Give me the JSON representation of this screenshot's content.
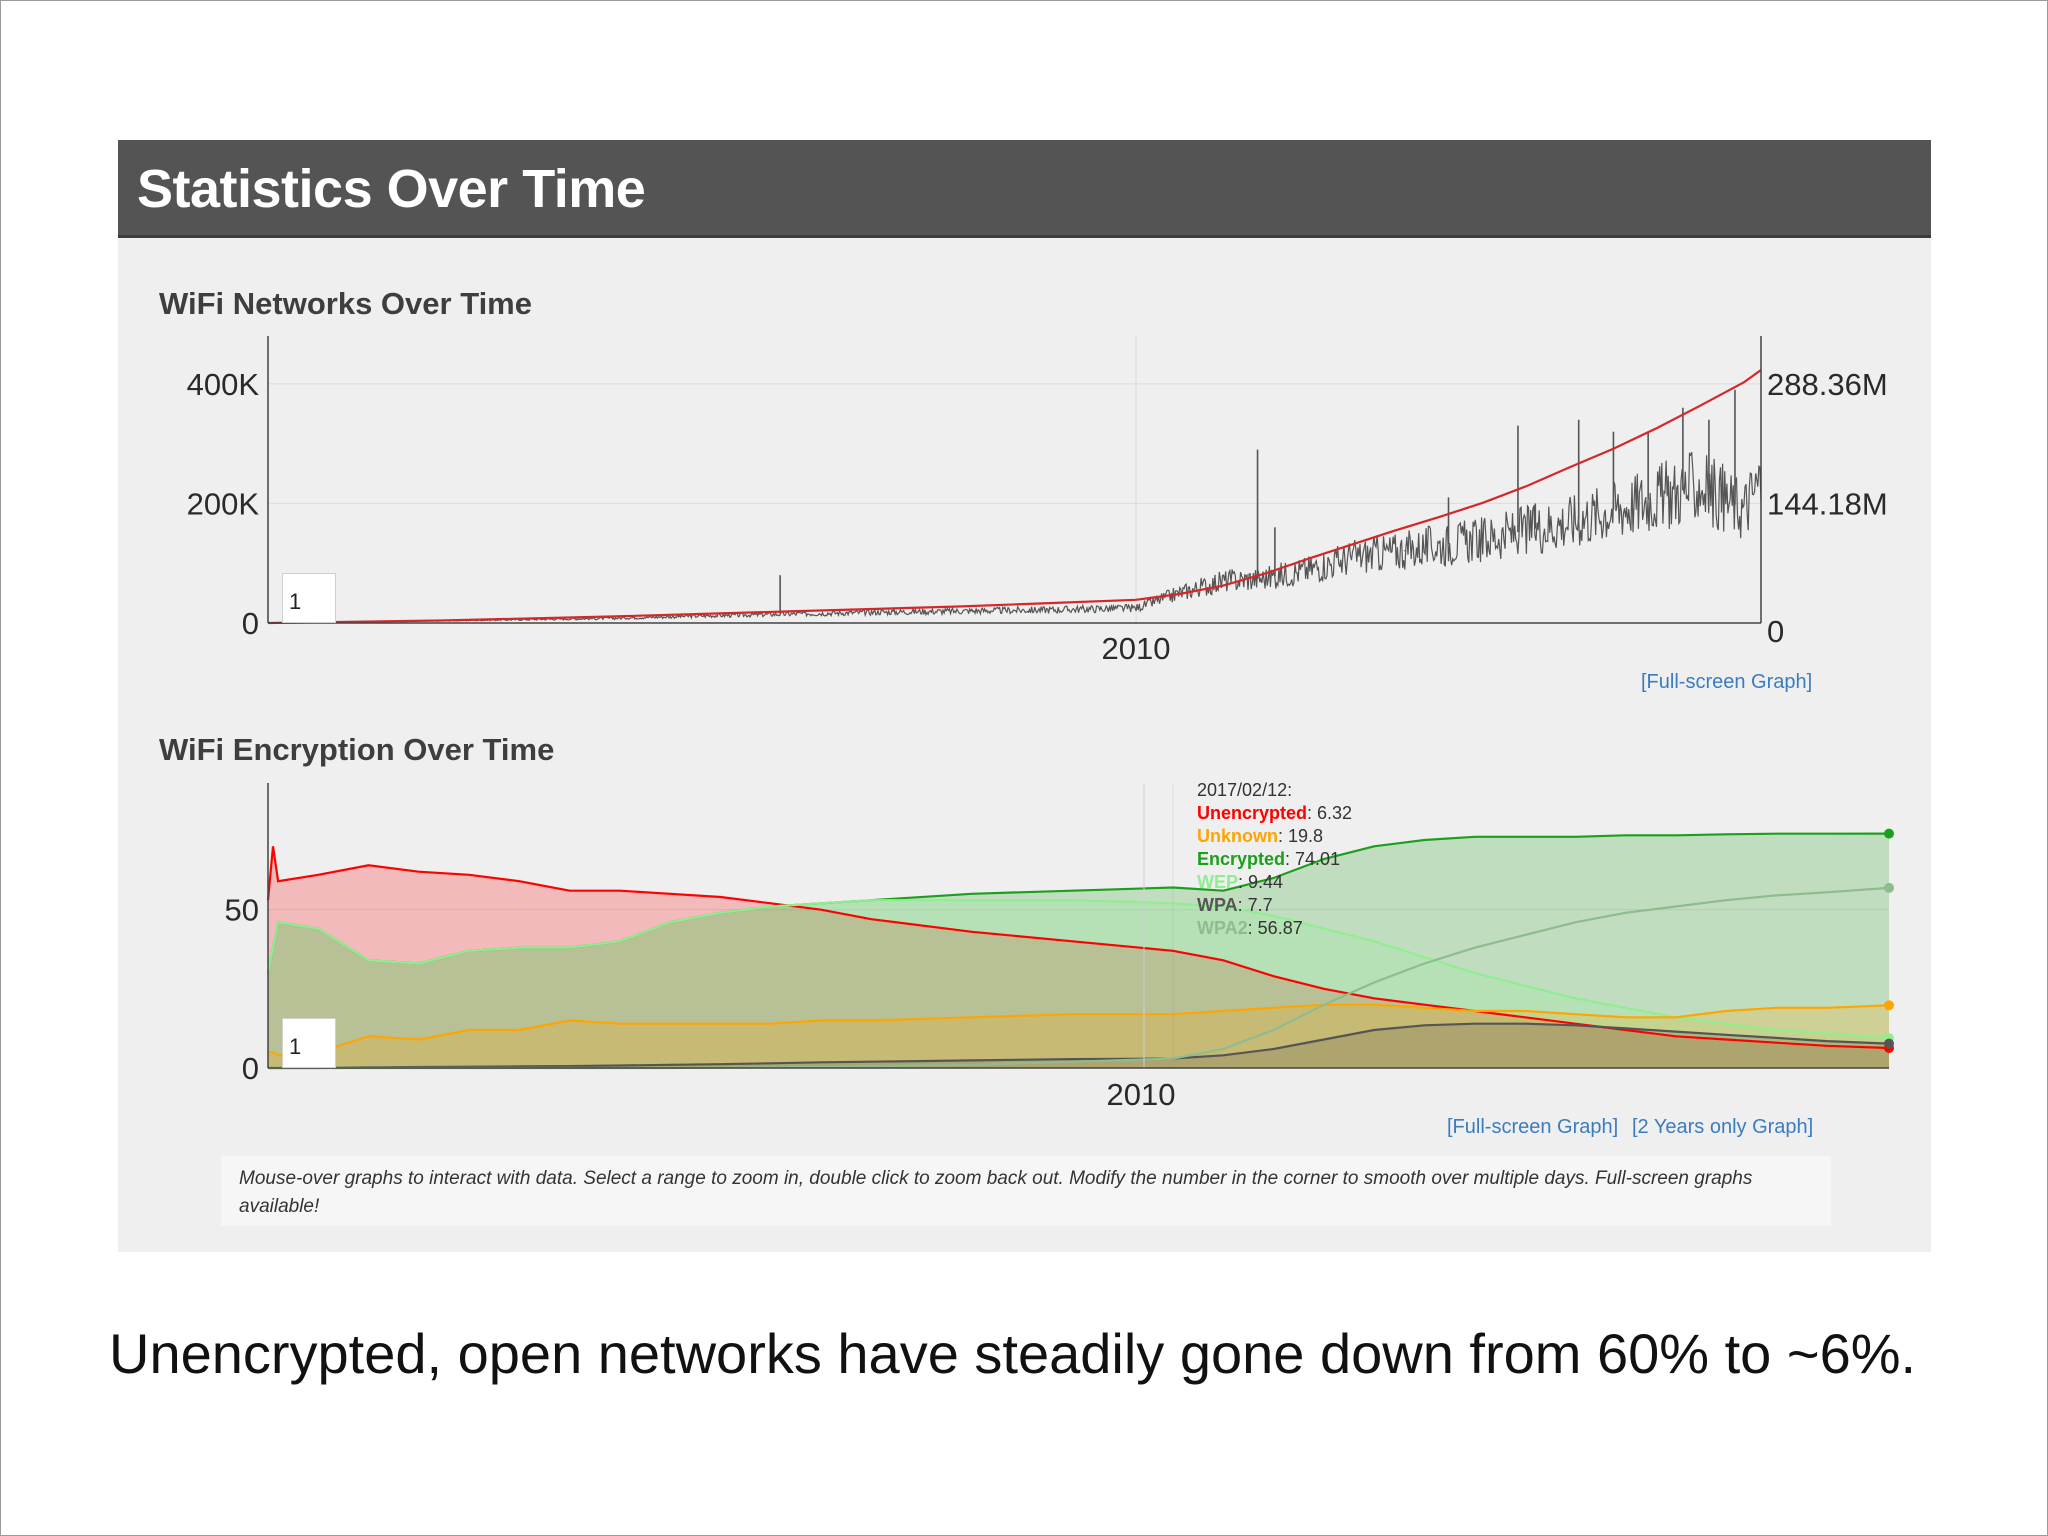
{
  "panel": {
    "title": "Statistics Over Time",
    "header_color": "#545454",
    "background_color": "#efefef"
  },
  "charts": {
    "networks": {
      "title": "WiFi Networks Over Time",
      "roll_period": "1",
      "links": [
        "[Full-screen Graph]"
      ]
    },
    "encryption": {
      "title": "WiFi Encryption Over Time",
      "roll_period": "1",
      "links": [
        "[Full-screen Graph]",
        "[2 Years only Graph]"
      ]
    }
  },
  "tooltip": {
    "date": "2017/02/12:",
    "rows": [
      {
        "label": "Unencrypted",
        "value": ": 6.32",
        "color": "#ff0000"
      },
      {
        "label": "Unknown",
        "value": ": 19.8",
        "color": "#ffa500"
      },
      {
        "label": "Encrypted",
        "value": ": 74.01",
        "color": "#1aa01a"
      },
      {
        "label": "WEP",
        "value": ": 9.44",
        "color": "#90ee90"
      },
      {
        "label": "WPA",
        "value": ": 7.7",
        "color": "#555555"
      },
      {
        "label": "WPA2",
        "value": ": 56.87",
        "color": "#8fbc8f"
      }
    ]
  },
  "help_text": "Mouse-over graphs to interact with data. Select a range to zoom in, double click to zoom back out. Modify the number in the corner to smooth over multiple days. Full-screen graphs available!",
  "caption": "Unencrypted, open networks have steadily gone down from 60% to ~6%.",
  "chart_data": [
    {
      "type": "line",
      "title": "WiFi Networks Over Time",
      "x_tick_labels": [
        "2010"
      ],
      "y_tick_labels": [
        "0",
        "200K",
        "400K"
      ],
      "y2_tick_labels": [
        "0",
        "144.18M",
        "288.36M"
      ],
      "ylim": [
        0,
        480000
      ],
      "y2lim": [
        0,
        346000000
      ],
      "xlim": [
        2000.0,
        2017.2
      ],
      "grid": true,
      "series": [
        {
          "color": "#555555",
          "axis": "left",
          "x": [
            2000.0,
            2001,
            2002,
            2003,
            2004,
            2005,
            2006,
            2007,
            2008,
            2009,
            2010,
            2010.5,
            2011,
            2011.5,
            2012,
            2012.5,
            2013,
            2013.5,
            2014,
            2014.5,
            2015,
            2015.5,
            2016,
            2016.5,
            2017.0,
            2017.2
          ],
          "values": [
            0,
            2000,
            4000,
            6000,
            8000,
            12000,
            15000,
            18000,
            20000,
            22000,
            25000,
            50000,
            70000,
            75000,
            90000,
            110000,
            120000,
            130000,
            140000,
            155000,
            170000,
            190000,
            210000,
            230000,
            190000,
            240000
          ]
        },
        {
          "color": "#d62728",
          "axis": "right",
          "x": [
            2000.0,
            2002,
            2004,
            2006,
            2008,
            2009,
            2010,
            2010.5,
            2011,
            2011.5,
            2012,
            2012.5,
            2013,
            2013.5,
            2014,
            2014.5,
            2015,
            2015.5,
            2016,
            2016.5,
            2017.0,
            2017.2
          ],
          "values": [
            0,
            3000000,
            8000000,
            14000000,
            20000000,
            24000000,
            28000000,
            35000000,
            45000000,
            60000000,
            78000000,
            95000000,
            112000000,
            128000000,
            145000000,
            165000000,
            188000000,
            210000000,
            235000000,
            262000000,
            290000000,
            305000000
          ]
        }
      ],
      "spikes": [
        {
          "x": 2005.9,
          "y": 80000
        },
        {
          "x": 2011.4,
          "y": 290000
        },
        {
          "x": 2011.6,
          "y": 160000
        },
        {
          "x": 2013.1,
          "y": 120000
        },
        {
          "x": 2013.6,
          "y": 210000
        },
        {
          "x": 2014.4,
          "y": 330000
        },
        {
          "x": 2014.6,
          "y": 200000
        },
        {
          "x": 2015.1,
          "y": 340000
        },
        {
          "x": 2015.5,
          "y": 320000
        },
        {
          "x": 2015.9,
          "y": 320000
        },
        {
          "x": 2016.3,
          "y": 360000
        },
        {
          "x": 2016.6,
          "y": 340000
        },
        {
          "x": 2016.9,
          "y": 390000
        }
      ]
    },
    {
      "type": "area",
      "title": "WiFi Encryption Over Time",
      "x_tick_labels": [
        "2010"
      ],
      "y_tick_labels": [
        "0",
        "50"
      ],
      "ylim": [
        0,
        90
      ],
      "xlim": [
        2001.0,
        2017.12
      ],
      "grid": true,
      "x": [
        2001.0,
        2001.05,
        2001.1,
        2001.5,
        2002.0,
        2002.5,
        2003.0,
        2003.5,
        2004.0,
        2004.5,
        2005.0,
        2005.5,
        2006.0,
        2006.5,
        2007.0,
        2008.0,
        2009.0,
        2010.0,
        2010.5,
        2011.0,
        2011.5,
        2012.0,
        2012.5,
        2013.0,
        2013.5,
        2014.0,
        2014.5,
        2015.0,
        2015.5,
        2016.0,
        2016.5,
        2017.12
      ],
      "series": [
        {
          "name": "Unencrypted",
          "color": "#ff0000",
          "fill": true,
          "values": [
            53,
            70,
            59,
            61,
            64,
            62,
            61,
            59,
            56,
            56,
            55,
            54,
            52,
            50,
            47,
            43,
            40,
            37,
            34,
            29,
            25,
            22,
            20,
            18,
            16,
            14,
            12,
            10,
            9,
            8,
            7,
            6.32
          ]
        },
        {
          "name": "Encrypted",
          "color": "#1aa01a",
          "fill": true,
          "values": [
            30,
            38,
            46,
            44,
            34,
            33,
            37,
            38,
            38,
            40,
            46,
            49,
            51,
            52,
            53,
            55,
            56,
            57,
            56,
            60,
            66,
            70,
            72,
            73,
            73,
            73,
            73.5,
            73.5,
            73.8,
            74,
            74,
            74.01
          ]
        },
        {
          "name": "Unknown",
          "color": "#ffa500",
          "fill": true,
          "values": [
            5,
            5,
            4,
            5,
            10,
            9,
            12,
            12,
            15,
            14,
            14,
            14,
            14,
            15,
            15,
            16,
            17,
            17,
            18,
            19,
            20,
            20,
            19,
            18,
            18,
            17,
            16,
            16,
            18,
            19,
            19,
            19.8
          ]
        },
        {
          "name": "WEP",
          "color": "#90ee90",
          "fill": true,
          "values": [
            30,
            38,
            46,
            44,
            34,
            33,
            37,
            38,
            38,
            40,
            46,
            49,
            51,
            52,
            53,
            53,
            53,
            52,
            51,
            48,
            44,
            40,
            35,
            30,
            26,
            22,
            19,
            16,
            14,
            12,
            11,
            9.44
          ]
        },
        {
          "name": "WPA",
          "color": "#555555",
          "fill": true,
          "values": [
            0,
            0,
            0,
            0,
            0.2,
            0.3,
            0.4,
            0.5,
            0.6,
            0.8,
            1,
            1.2,
            1.5,
            1.8,
            2,
            2.4,
            2.8,
            3,
            4,
            6,
            9,
            12,
            13.5,
            14,
            14,
            13.5,
            12.5,
            11.5,
            10.5,
            9.5,
            8.5,
            7.7
          ]
        },
        {
          "name": "WPA2",
          "color": "#8fbc8f",
          "fill": false,
          "values": [
            0,
            0,
            0,
            0,
            0,
            0,
            0,
            0,
            0,
            0,
            0,
            0.1,
            0.2,
            0.4,
            0.6,
            1,
            2,
            3,
            6,
            12,
            20,
            27,
            33,
            38,
            42,
            46,
            49,
            51,
            53,
            54.5,
            55.5,
            56.87
          ]
        }
      ]
    }
  ]
}
